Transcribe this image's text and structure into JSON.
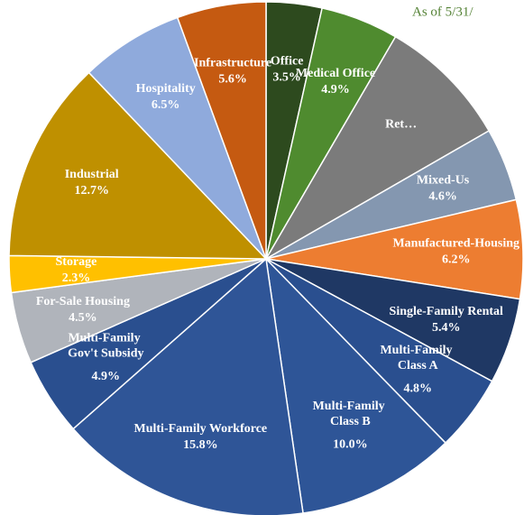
{
  "chart_data": {
    "type": "pie",
    "annotation": "As of 5/31/",
    "categories": [
      "Office",
      "Medical Office",
      "Ret…",
      "Mixed-Us",
      "Manufactured-Housing",
      "Single-Family Rental",
      "Multi-Family Class A",
      "Multi-Family Class B",
      "Multi-Family Workforce",
      "Multi-Family Gov't Subsidy",
      "For-Sale Housing",
      "Storage",
      "Industrial",
      "Hospitality",
      "Infrastructure"
    ],
    "values": [
      3.5,
      4.9,
      8.3,
      4.6,
      6.2,
      5.4,
      4.8,
      10.0,
      15.8,
      4.9,
      4.5,
      2.3,
      12.7,
      6.5,
      5.6
    ],
    "value_labels": [
      "3.5%",
      "4.9%",
      null,
      "4.6%",
      "6.2%",
      "5.4%",
      "4.8%",
      "10.0%",
      "15.8%",
      "4.9%",
      "4.5%",
      "2.3%",
      "12.7%",
      "6.5%",
      "5.6%"
    ],
    "colors": [
      "#2d4a1e",
      "#4f8b2f",
      "#7b7b7b",
      "#8497b0",
      "#ed7d31",
      "#1f3864",
      "#2a4f8f",
      "#2e5597",
      "#2f5597",
      "#2a4f8f",
      "#b0b4bb",
      "#ffc000",
      "#bf9000",
      "#8faadc",
      "#c55a11"
    ]
  }
}
